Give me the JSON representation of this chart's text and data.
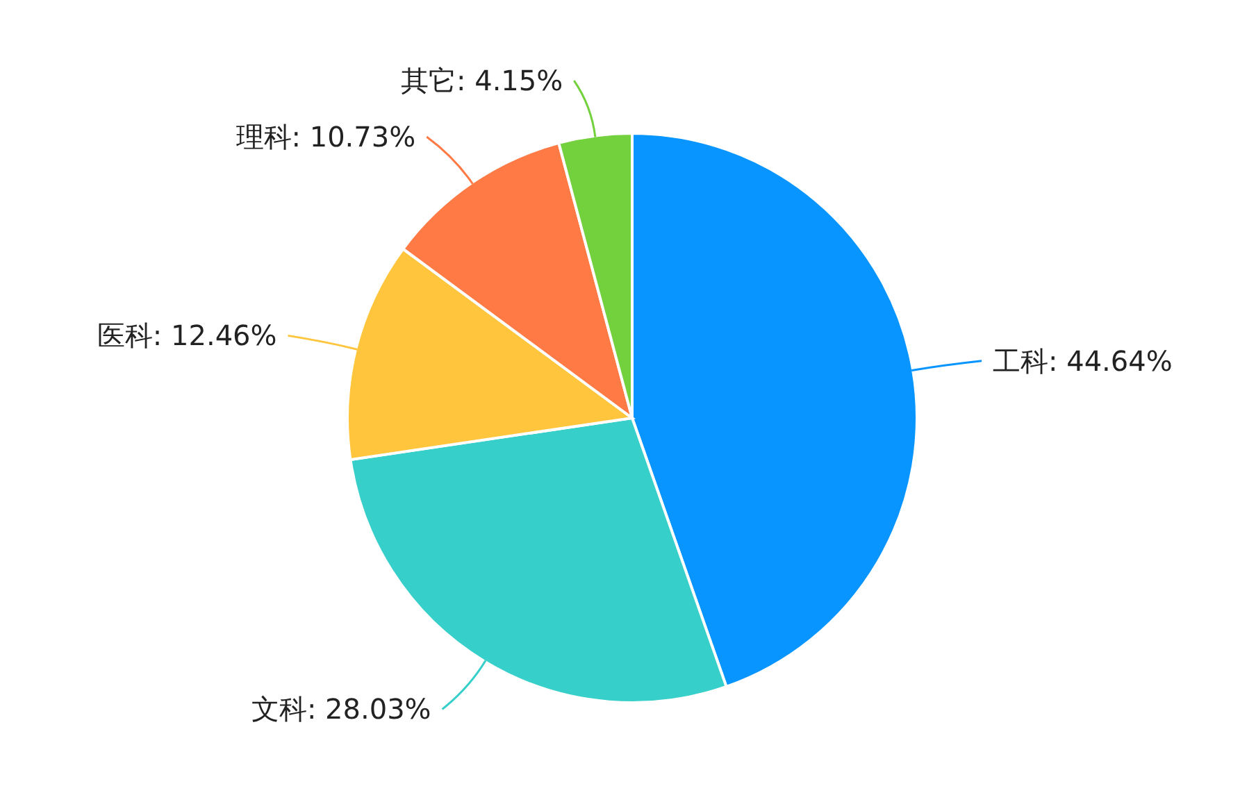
{
  "chart_data": {
    "type": "pie",
    "categories": [
      "工科: 44.64%",
      "文科: 28.03%",
      "医科: 12.46%",
      "理科: 10.73%",
      "其它: 4.15%"
    ],
    "values": [
      44.64,
      28.03,
      12.46,
      10.73,
      4.15
    ],
    "colors": [
      "#0995ff",
      "#36cfc9",
      "#ffc53d",
      "#ff7a45",
      "#73d13d"
    ]
  }
}
